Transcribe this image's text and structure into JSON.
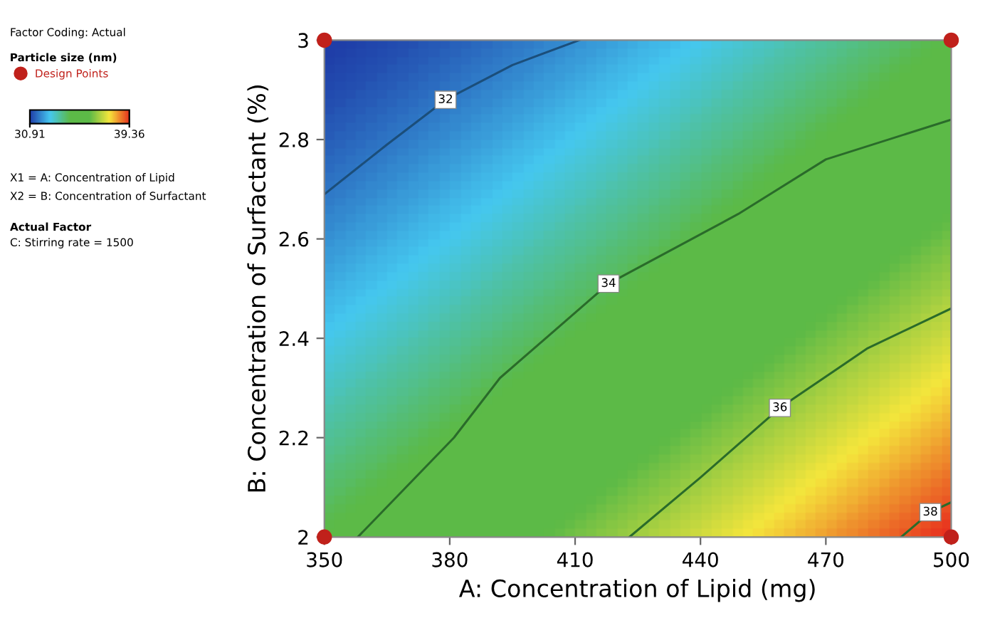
{
  "chart_data": {
    "type": "line",
    "xlabel": "A: Concentration of Lipid (mg)",
    "ylabel": "B: Concentration of Surfactant (%)",
    "xlim": [
      350,
      500
    ],
    "xticks": [
      350,
      380,
      410,
      440,
      470,
      500
    ],
    "ylim": [
      2,
      3
    ],
    "yticks": [
      2,
      2.2,
      2.4,
      2.6,
      2.8,
      3
    ],
    "legend_title": "Particle size (nm)",
    "legend": "top left",
    "grid": false,
    "clim": [
      30.91,
      39.36
    ],
    "cticks": [
      30.91,
      39.36
    ],
    "colors": [
      "#1f3ea8",
      "#45c8f0",
      "#5cba47",
      "#5cba47",
      "#f5e63c",
      "#e8321e"
    ],
    "annotations": [
      "Factor Coding: Actual",
      "X1 = A: Concentration of Lipid",
      "X2 = B: Concentration of Surfactant",
      "Actual Factor",
      "C: Stirring rate = 1500"
    ],
    "series": [
      {
        "type": "line",
        "name": "32",
        "color": "#1b4e7a",
        "x": [
          350,
          365,
          379,
          395,
          411
        ],
        "values": [
          2.69,
          2.79,
          2.88,
          2.95,
          3.0
        ]
      },
      {
        "type": "line",
        "name": "34",
        "color": "#2a6b2a",
        "x": [
          358,
          381,
          392,
          418,
          449,
          470,
          500
        ],
        "values": [
          2.0,
          2.2,
          2.32,
          2.51,
          2.65,
          2.76,
          2.84
        ]
      },
      {
        "type": "line",
        "name": "36",
        "color": "#2a6b2a",
        "x": [
          423,
          440,
          459,
          480,
          500
        ],
        "values": [
          2.0,
          2.12,
          2.26,
          2.38,
          2.46
        ]
      },
      {
        "type": "line",
        "name": "38",
        "color": "#2a6b2a",
        "x": [
          488,
          495,
          500
        ],
        "values": [
          2.0,
          2.05,
          2.07
        ]
      },
      {
        "type": "scatter",
        "name": "Design Points",
        "color": "#c0211b",
        "marker": "circle",
        "x": [
          350,
          350,
          500,
          500
        ],
        "values": [
          2,
          3,
          2,
          3
        ]
      }
    ]
  }
}
